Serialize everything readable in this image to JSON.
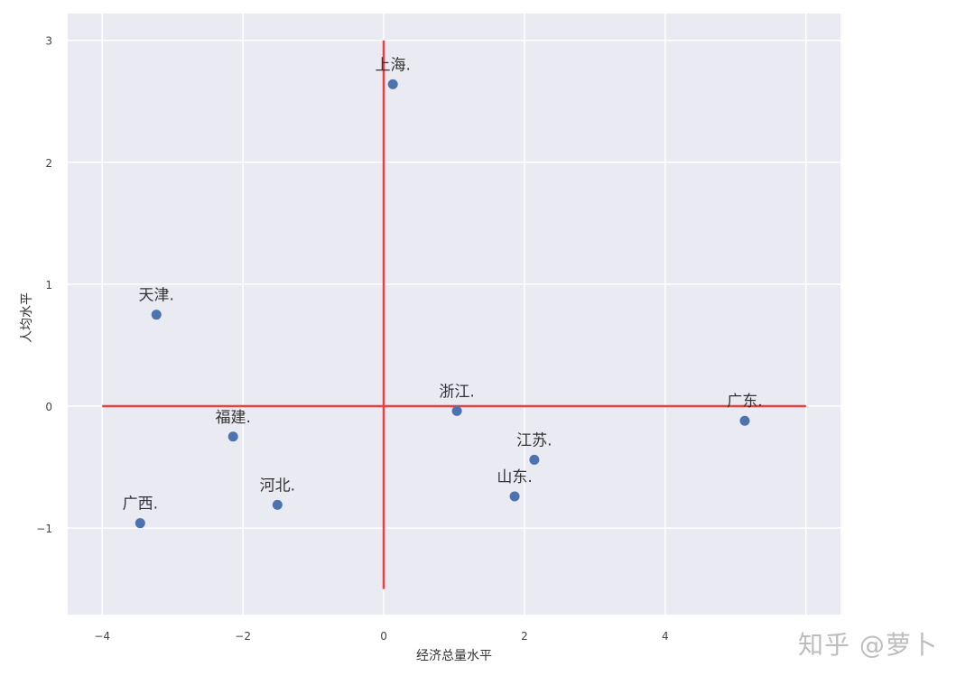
{
  "chart_data": {
    "type": "scatter",
    "title": "",
    "xlabel": "经济总量水平",
    "ylabel": "人均水平",
    "xlim": [
      -4.49,
      6.49
    ],
    "ylim": [
      -1.71,
      3.22
    ],
    "xticks": [
      -4,
      -2,
      0,
      2,
      4
    ],
    "xtick_labels": [
      "−4",
      "−2",
      "0",
      "2",
      "4"
    ],
    "yticks": [
      -1,
      0,
      1,
      2,
      3
    ],
    "ytick_labels": [
      "−1",
      "0",
      "1",
      "2",
      "3"
    ],
    "grid": true,
    "background": "#eaeaf2",
    "point_color": "#4c72b0",
    "line_color": "#e8413e",
    "points": [
      {
        "label": "上海.",
        "x": 0.13,
        "y": 2.64
      },
      {
        "label": "天津.",
        "x": -3.23,
        "y": 0.75
      },
      {
        "label": "浙江.",
        "x": 1.04,
        "y": -0.04
      },
      {
        "label": "广东.",
        "x": 5.13,
        "y": -0.12
      },
      {
        "label": "福建.",
        "x": -2.14,
        "y": -0.25
      },
      {
        "label": "江苏.",
        "x": 2.14,
        "y": -0.44
      },
      {
        "label": "山东.",
        "x": 1.86,
        "y": -0.74
      },
      {
        "label": "河北.",
        "x": -1.51,
        "y": -0.81
      },
      {
        "label": "广西.",
        "x": -3.46,
        "y": -0.96
      }
    ],
    "reference_lines": [
      {
        "orientation": "horizontal",
        "y": 0,
        "x_from": -4,
        "x_to": 6
      },
      {
        "orientation": "vertical",
        "x": 0,
        "y_from": -1.5,
        "y_to": 3
      }
    ]
  },
  "watermark": "知乎 @萝卜"
}
